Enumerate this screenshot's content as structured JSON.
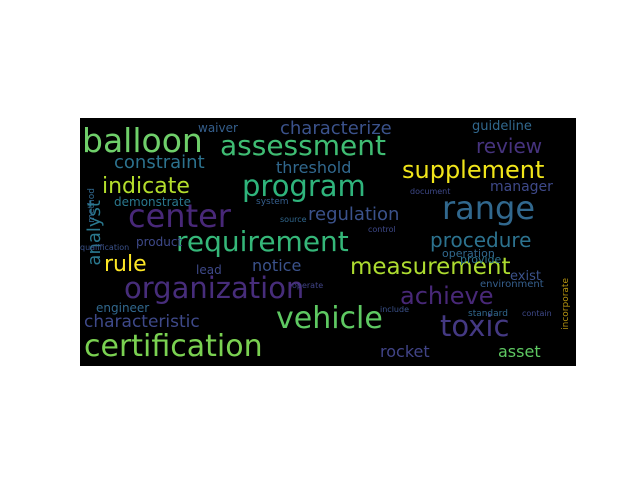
{
  "word_cloud": {
    "background": "#000000",
    "words": [
      {
        "text": "balloon",
        "color": "#6fcf6a"
      },
      {
        "text": "assessment",
        "color": "#3fbc73"
      },
      {
        "text": "characterize",
        "color": "#3b528b"
      },
      {
        "text": "guideline",
        "color": "#31688e"
      },
      {
        "text": "review",
        "color": "#46337e"
      },
      {
        "text": "waiver",
        "color": "#355f8d"
      },
      {
        "text": "constraint",
        "color": "#2c728e"
      },
      {
        "text": "threshold",
        "color": "#31688e"
      },
      {
        "text": "supplement",
        "color": "#f0e51a"
      },
      {
        "text": "indicate",
        "color": "#b4de2c"
      },
      {
        "text": "program",
        "color": "#2fb47c"
      },
      {
        "text": "manager",
        "color": "#3e4989"
      },
      {
        "text": "demonstrate",
        "color": "#2a788e"
      },
      {
        "text": "center",
        "color": "#482878"
      },
      {
        "text": "regulation",
        "color": "#3b528b"
      },
      {
        "text": "range",
        "color": "#31688e"
      },
      {
        "text": "requirement",
        "color": "#35b779"
      },
      {
        "text": "procedure",
        "color": "#2c728e"
      },
      {
        "text": "analyst",
        "color": "#2a788e"
      },
      {
        "text": "product",
        "color": "#3e4989"
      },
      {
        "text": "rule",
        "color": "#fde725"
      },
      {
        "text": "lead",
        "color": "#3e4989"
      },
      {
        "text": "notice",
        "color": "#3b528b"
      },
      {
        "text": "measurement",
        "color": "#addc30"
      },
      {
        "text": "organization",
        "color": "#472d7b"
      },
      {
        "text": "achieve",
        "color": "#482878"
      },
      {
        "text": "engineer",
        "color": "#31688e"
      },
      {
        "text": "characteristic",
        "color": "#3e4989"
      },
      {
        "text": "vehicle",
        "color": "#5ec962"
      },
      {
        "text": "toxic",
        "color": "#443983"
      },
      {
        "text": "certification",
        "color": "#7ad151"
      },
      {
        "text": "rocket",
        "color": "#414487"
      },
      {
        "text": "asset",
        "color": "#5ec962"
      },
      {
        "text": "incorporate",
        "color": "#b5930f"
      },
      {
        "text": "document",
        "color": "#3e4989"
      },
      {
        "text": "provide",
        "color": "#2c728e"
      },
      {
        "text": "operation",
        "color": "#31688e"
      },
      {
        "text": "exist",
        "color": "#3b528b"
      },
      {
        "text": "environment",
        "color": "#355f8d"
      },
      {
        "text": "standard",
        "color": "#31688e"
      },
      {
        "text": "contain",
        "color": "#3e4989"
      },
      {
        "text": "system",
        "color": "#355f8d"
      },
      {
        "text": "source",
        "color": "#31688e"
      },
      {
        "text": "control",
        "color": "#3e4989"
      },
      {
        "text": "include",
        "color": "#3b528b"
      },
      {
        "text": "method",
        "color": "#31688e"
      },
      {
        "text": "qualification",
        "color": "#3b528b"
      },
      {
        "text": "operate",
        "color": "#414487"
      }
    ]
  }
}
